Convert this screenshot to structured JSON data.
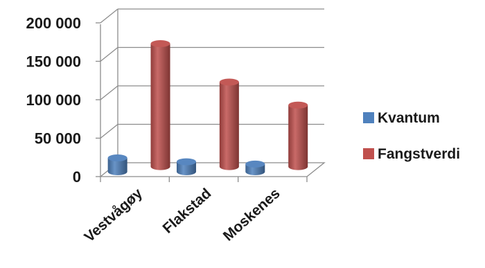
{
  "chart_data": {
    "type": "bar",
    "style": "3d-cylinder",
    "categories": [
      "Vestvågøy",
      "Flakstad",
      "Moskenes"
    ],
    "series": [
      {
        "name": "Kvantum",
        "color": "#4f81bd",
        "values": [
          18000,
          13000,
          10000
        ]
      },
      {
        "name": "Fangstverdi",
        "color": "#c0504d",
        "values": [
          160000,
          110000,
          80000
        ]
      }
    ],
    "yticks": [
      "0",
      "50 000",
      "100 000",
      "150 000",
      "200 000"
    ],
    "ylim": [
      0,
      200000
    ],
    "grid": true,
    "legend": "right"
  }
}
